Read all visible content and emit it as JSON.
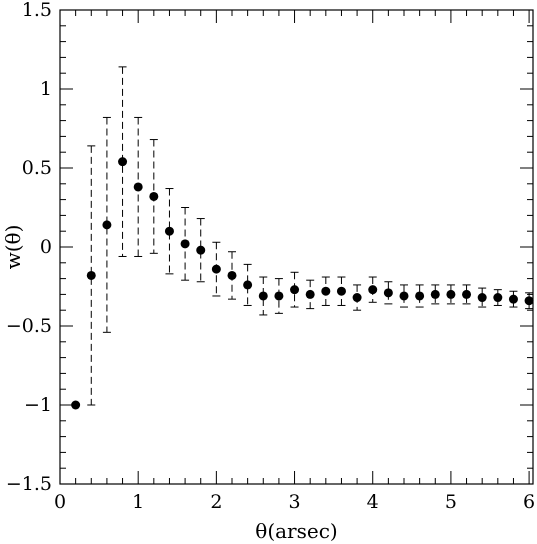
{
  "chart_data": {
    "type": "scatter",
    "title": "",
    "xlabel": "θ(arsec)",
    "ylabel": "w(θ)",
    "xlim": [
      0,
      6.05
    ],
    "ylim": [
      -1.5,
      1.5
    ],
    "xticks": [
      0,
      1,
      2,
      3,
      4,
      5,
      6
    ],
    "xtick_labels": [
      "0",
      "1",
      "2",
      "3",
      "4",
      "5",
      "6"
    ],
    "yticks": [
      -1.5,
      -1,
      -0.5,
      0,
      0.5,
      1,
      1.5
    ],
    "ytick_labels": [
      "−1.5",
      "−1",
      "−0.5",
      "0",
      "0.5",
      "1",
      "1.5"
    ],
    "grid": false,
    "marker_color": "#000000",
    "errorbar_style": "dashed",
    "series": [
      {
        "x": [
          0.2,
          0.4,
          0.6,
          0.8,
          1.0,
          1.2,
          1.4,
          1.6,
          1.8,
          2.0,
          2.2,
          2.4,
          2.6,
          2.8,
          3.0,
          3.2,
          3.4,
          3.6,
          3.8,
          4.0,
          4.2,
          4.4,
          4.6,
          4.8,
          5.0,
          5.2,
          5.4,
          5.6,
          5.8,
          6.0
        ],
        "y": [
          -1.0,
          -0.18,
          0.14,
          0.54,
          0.38,
          0.32,
          0.1,
          0.02,
          -0.02,
          -0.14,
          -0.18,
          -0.24,
          -0.31,
          -0.31,
          -0.27,
          -0.3,
          -0.28,
          -0.28,
          -0.32,
          -0.27,
          -0.29,
          -0.31,
          -0.31,
          -0.3,
          -0.3,
          -0.3,
          -0.32,
          -0.32,
          -0.33,
          -0.34
        ],
        "yerr": [
          0.0,
          0.82,
          0.68,
          0.6,
          0.44,
          0.36,
          0.27,
          0.23,
          0.2,
          0.17,
          0.15,
          0.13,
          0.12,
          0.11,
          0.11,
          0.09,
          0.09,
          0.09,
          0.08,
          0.08,
          0.07,
          0.07,
          0.07,
          0.06,
          0.06,
          0.06,
          0.06,
          0.05,
          0.05,
          0.05
        ]
      }
    ]
  }
}
